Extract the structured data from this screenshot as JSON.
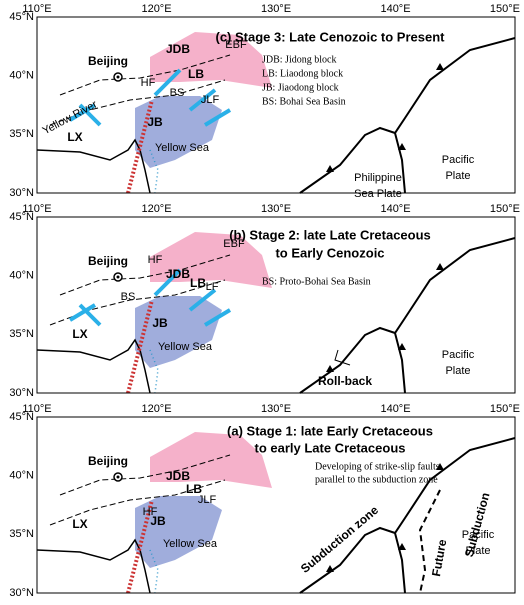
{
  "axes": {
    "lon_labels": [
      "110°E",
      "120°E",
      "130°E",
      "140°E",
      "150°E"
    ],
    "lat_labels": [
      "45°N",
      "40°N",
      "35°N",
      "30°N"
    ]
  },
  "panels": [
    {
      "title": [
        "(c) Stage 3: Late Cenozoic to Present"
      ],
      "legend": [
        "JDB: Jidong block",
        "LB: Liaodong block",
        "JB: Jiaodong block",
        "BS: Bohai Sea Basin"
      ],
      "labels": [
        "Beijing",
        "JDB",
        "LB",
        "EBF",
        "HF",
        "BS",
        "JLF",
        "LX",
        "JB",
        "Yellow River",
        "Yellow Sea",
        [
          "Pacific",
          "Plate"
        ],
        [
          "Philippine",
          "Sea Plate"
        ]
      ]
    },
    {
      "title": [
        "(b) Stage 2: late Late Cretaceous",
        "to Early Cenozoic"
      ],
      "legend": [
        "BS: Proto-Bohai Sea Basin"
      ],
      "labels": [
        "Beijing",
        "JDB",
        "LB",
        "EBF",
        "HF",
        "BS",
        "LF",
        "LX",
        "JB",
        "Yellow Sea",
        [
          "Pacific",
          "Plate"
        ],
        "Roll-back"
      ]
    },
    {
      "title": [
        "(a) Stage 1: late Early Cretaceous",
        "to early Late Cretaceous"
      ],
      "legend": [
        "Developing of strike-slip faults",
        "parallel to the subduction zone"
      ],
      "labels": [
        "Beijing",
        "JDB",
        "LB",
        "JLF",
        "HF",
        "LX",
        "JB",
        "Yellow Sea",
        "Subduction zone",
        "Subduction",
        "Future",
        [
          "Pacific",
          "Plate"
        ]
      ]
    }
  ]
}
